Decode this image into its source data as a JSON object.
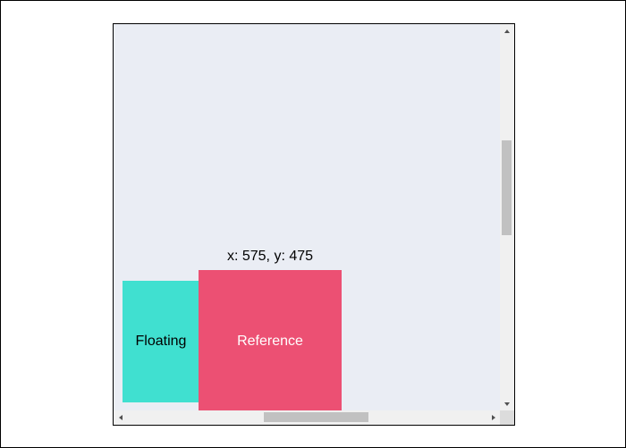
{
  "position_readout": "x: 575, y: 475",
  "floating": {
    "label": "Floating",
    "color": "#40e0d0"
  },
  "reference": {
    "label": "Reference",
    "color": "#ec5073"
  },
  "scroll_area": {
    "background": "#eaedf4",
    "vertical_scroll_fraction": 0.35,
    "horizontal_scroll_fraction": 0.42
  },
  "icons": {
    "scroll_up": "triangle-up-icon",
    "scroll_down": "triangle-down-icon",
    "scroll_left": "triangle-left-icon",
    "scroll_right": "triangle-right-icon"
  }
}
